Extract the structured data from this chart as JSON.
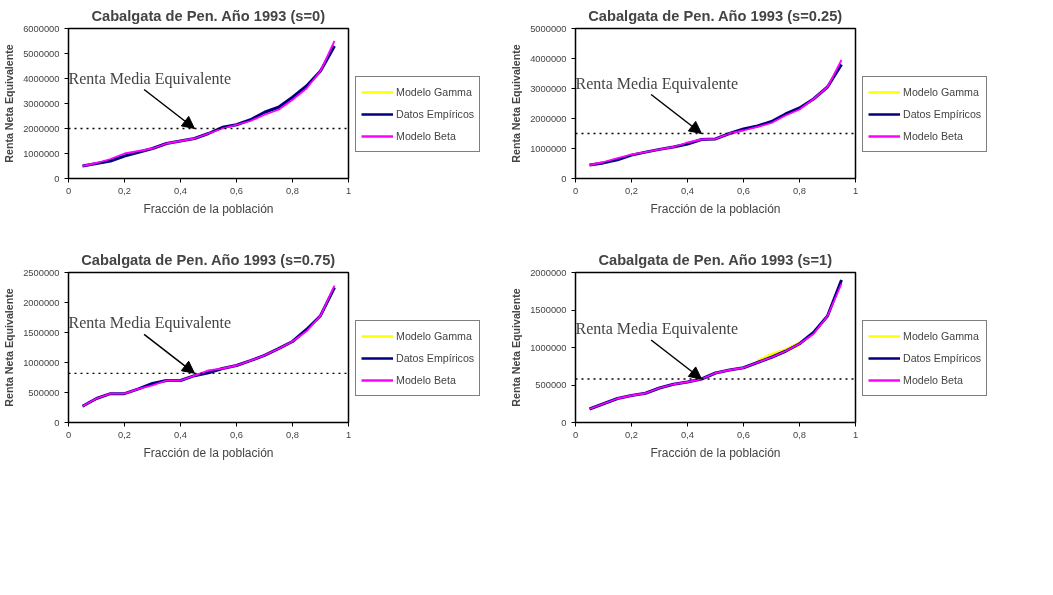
{
  "chart_data": [
    {
      "type": "line",
      "title": "Cabalgata de Pen. Año 1993 (s=0)",
      "xlabel": "Fracción de la población",
      "ylabel": "Renta Neta Equivalente",
      "x": [
        0.05,
        0.1,
        0.15,
        0.2,
        0.25,
        0.3,
        0.35,
        0.4,
        0.45,
        0.5,
        0.55,
        0.6,
        0.65,
        0.7,
        0.75,
        0.8,
        0.85,
        0.9,
        0.95
      ],
      "series": [
        {
          "name": "Modelo Gamma",
          "color": "#ffff00",
          "values": [
            null,
            null,
            null,
            null,
            null,
            null,
            null,
            null,
            null,
            null,
            null,
            null,
            null,
            null,
            null,
            null,
            null,
            null,
            null
          ]
        },
        {
          "name": "Datos Empíricos",
          "color": "#000080",
          "values": [
            500000,
            600000,
            700000,
            900000,
            1050000,
            1200000,
            1400000,
            1500000,
            1600000,
            1800000,
            2050000,
            2150000,
            2350000,
            2650000,
            2850000,
            3250000,
            3700000,
            4300000,
            5300000
          ]
        },
        {
          "name": "Modelo Beta",
          "color": "#ff00ff",
          "values": [
            500000,
            620000,
            780000,
            1000000,
            1100000,
            1200000,
            1400000,
            1500000,
            1600000,
            1800000,
            2000000,
            2150000,
            2300000,
            2550000,
            2750000,
            3150000,
            3600000,
            4300000,
            5500000
          ]
        }
      ],
      "xlim": [
        0,
        1
      ],
      "ylim": [
        0,
        6000000
      ],
      "xticks": [
        0,
        {
          "value": 0.2,
          "label": "0,2"
        },
        {
          "value": 0.4,
          "label": "0,4"
        },
        {
          "value": 0.6,
          "label": "0,6"
        },
        {
          "value": 0.8,
          "label": "0,8"
        },
        1
      ],
      "yticks": [
        0,
        1000000,
        2000000,
        3000000,
        4000000,
        5000000,
        6000000
      ],
      "ref_lines": [
        {
          "axis": "y",
          "value": 2000000,
          "label": "Renta Media Equivalente",
          "color": "#000000",
          "line_style": "dotted"
        }
      ],
      "legend": "right",
      "grid": false,
      "marker": "none",
      "line_style": "solid"
    },
    {
      "type": "line",
      "title": "Cabalgata de Pen. Año 1993 (s=0.25)",
      "xlabel": "Fracción de la población",
      "ylabel": "Renta Neta Equivalente",
      "x": [
        0.05,
        0.1,
        0.15,
        0.2,
        0.25,
        0.3,
        0.35,
        0.4,
        0.45,
        0.5,
        0.55,
        0.6,
        0.65,
        0.7,
        0.75,
        0.8,
        0.85,
        0.9,
        0.95
      ],
      "series": [
        {
          "name": "Modelo Gamma",
          "color": "#ffff00",
          "values": [
            null,
            null,
            null,
            null,
            null,
            null,
            null,
            null,
            null,
            null,
            null,
            null,
            null,
            null,
            null,
            null,
            null,
            null,
            null
          ]
        },
        {
          "name": "Datos Empíricos",
          "color": "#000080",
          "values": [
            450000,
            520000,
            620000,
            780000,
            880000,
            970000,
            1050000,
            1150000,
            1300000,
            1320000,
            1500000,
            1650000,
            1750000,
            1900000,
            2150000,
            2350000,
            2650000,
            3050000,
            3800000
          ]
        },
        {
          "name": "Modelo Beta",
          "color": "#ff00ff",
          "values": [
            450000,
            550000,
            680000,
            800000,
            880000,
            970000,
            1050000,
            1200000,
            1300000,
            1320000,
            1500000,
            1600000,
            1720000,
            1850000,
            2100000,
            2300000,
            2650000,
            3050000,
            3950000
          ]
        }
      ],
      "xlim": [
        0,
        1
      ],
      "ylim": [
        0,
        5000000
      ],
      "xticks": [
        0,
        {
          "value": 0.2,
          "label": "0,2"
        },
        {
          "value": 0.4,
          "label": "0,4"
        },
        {
          "value": 0.6,
          "label": "0,6"
        },
        {
          "value": 0.8,
          "label": "0,8"
        },
        1
      ],
      "yticks": [
        0,
        1000000,
        2000000,
        3000000,
        4000000,
        5000000
      ],
      "ref_lines": [
        {
          "axis": "y",
          "value": 1500000,
          "label": "Renta Media Equivalente",
          "color": "#000000",
          "line_style": "dotted"
        }
      ],
      "legend": "right",
      "grid": false,
      "marker": "none",
      "line_style": "solid"
    },
    {
      "type": "line",
      "title": "Cabalgata de Pen. Año 1993 (s=0.75)",
      "xlabel": "Fracción de la población",
      "ylabel": "Renta Neta Equivalente",
      "x": [
        0.05,
        0.1,
        0.15,
        0.2,
        0.25,
        0.3,
        0.35,
        0.4,
        0.45,
        0.5,
        0.55,
        0.6,
        0.65,
        0.7,
        0.75,
        0.8,
        0.85,
        0.9,
        0.95
      ],
      "series": [
        {
          "name": "Modelo Gamma",
          "color": "#ffff00",
          "values": [
            null,
            null,
            null,
            null,
            null,
            null,
            null,
            null,
            null,
            null,
            null,
            null,
            null,
            null,
            null,
            null,
            null,
            null,
            null
          ]
        },
        {
          "name": "Datos Empíricos",
          "color": "#000080",
          "values": [
            270000,
            400000,
            480000,
            480000,
            560000,
            650000,
            700000,
            700000,
            780000,
            830000,
            900000,
            950000,
            1030000,
            1120000,
            1230000,
            1350000,
            1550000,
            1780000,
            2250000
          ]
        },
        {
          "name": "Modelo Beta",
          "color": "#ff00ff",
          "values": [
            270000,
            400000,
            480000,
            480000,
            560000,
            620000,
            700000,
            700000,
            780000,
            870000,
            900000,
            950000,
            1030000,
            1120000,
            1230000,
            1350000,
            1520000,
            1780000,
            2280000
          ]
        }
      ],
      "xlim": [
        0,
        1
      ],
      "ylim": [
        0,
        2500000
      ],
      "xticks": [
        0,
        {
          "value": 0.2,
          "label": "0,2"
        },
        {
          "value": 0.4,
          "label": "0,4"
        },
        {
          "value": 0.6,
          "label": "0,6"
        },
        {
          "value": 0.8,
          "label": "0,8"
        },
        1
      ],
      "yticks": [
        0,
        500000,
        1000000,
        1500000,
        2000000,
        2500000
      ],
      "ref_lines": [
        {
          "axis": "y",
          "value": 820000,
          "label": "Renta Media Equivalente",
          "color": "#000000",
          "line_style": "dotted"
        }
      ],
      "legend": "right",
      "grid": false,
      "marker": "none",
      "line_style": "solid"
    },
    {
      "type": "line",
      "title": "Cabalgata de Pen. Año 1993 (s=1)",
      "xlabel": "Fracción de la población",
      "ylabel": "Renta Neta Equivalente",
      "x": [
        0.05,
        0.1,
        0.15,
        0.2,
        0.25,
        0.3,
        0.35,
        0.4,
        0.45,
        0.5,
        0.55,
        0.6,
        0.65,
        0.7,
        0.75,
        0.8,
        0.85,
        0.9,
        0.95
      ],
      "series": [
        {
          "name": "Modelo Gamma",
          "color": "#ffff00",
          "values": [
            null,
            null,
            null,
            null,
            null,
            null,
            null,
            null,
            null,
            null,
            null,
            null,
            810000,
            900000,
            960000,
            1050000,
            null,
            null,
            null
          ]
        },
        {
          "name": "Datos Empíricos",
          "color": "#000080",
          "values": [
            180000,
            250000,
            320000,
            360000,
            390000,
            460000,
            510000,
            540000,
            580000,
            660000,
            700000,
            730000,
            800000,
            870000,
            950000,
            1050000,
            1200000,
            1420000,
            1900000
          ]
        },
        {
          "name": "Modelo Beta",
          "color": "#ff00ff",
          "values": [
            180000,
            250000,
            320000,
            360000,
            390000,
            460000,
            510000,
            540000,
            580000,
            660000,
            700000,
            730000,
            800000,
            870000,
            950000,
            1050000,
            1180000,
            1420000,
            1850000
          ]
        }
      ],
      "xlim": [
        0,
        1
      ],
      "ylim": [
        0,
        2000000
      ],
      "xticks": [
        0,
        {
          "value": 0.2,
          "label": "0,2"
        },
        {
          "value": 0.4,
          "label": "0,4"
        },
        {
          "value": 0.6,
          "label": "0,6"
        },
        {
          "value": 0.8,
          "label": "0,8"
        },
        1
      ],
      "yticks": [
        0,
        500000,
        1000000,
        1500000,
        2000000
      ],
      "ref_lines": [
        {
          "axis": "y",
          "value": 580000,
          "label": "Renta Media Equivalente",
          "color": "#000000",
          "line_style": "dotted"
        }
      ],
      "legend": "right",
      "grid": false,
      "marker": "none",
      "line_style": "solid"
    }
  ]
}
